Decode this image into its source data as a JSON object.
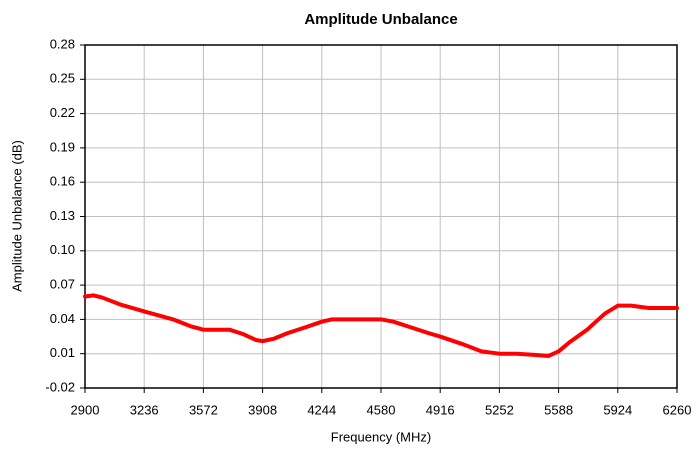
{
  "chart_data": {
    "type": "line",
    "title": "Amplitude Unbalance",
    "x_label": "Frequency (MHz)",
    "y_label": "Amplitude Unbalance (dB)",
    "series": [
      {
        "name": "Amplitude Unbalance",
        "color": "#ff0000",
        "x": [
          2900,
          2950,
          3000,
          3100,
          3236,
          3400,
          3500,
          3572,
          3650,
          3720,
          3800,
          3870,
          3908,
          3970,
          4050,
          4150,
          4244,
          4300,
          4400,
          4500,
          4580,
          4650,
          4750,
          4850,
          4916,
          5050,
          5150,
          5252,
          5350,
          5450,
          5530,
          5588,
          5650,
          5750,
          5850,
          5924,
          6000,
          6100,
          6260
        ],
        "values": [
          0.06,
          0.061,
          0.059,
          0.053,
          0.047,
          0.04,
          0.034,
          0.031,
          0.031,
          0.031,
          0.027,
          0.022,
          0.021,
          0.023,
          0.028,
          0.033,
          0.038,
          0.04,
          0.04,
          0.04,
          0.04,
          0.038,
          0.033,
          0.028,
          0.025,
          0.018,
          0.012,
          0.01,
          0.01,
          0.009,
          0.008,
          0.012,
          0.02,
          0.031,
          0.045,
          0.052,
          0.052,
          0.05,
          0.05
        ]
      }
    ],
    "xlim": [
      2900,
      6260
    ],
    "xticks": [
      2900,
      3236,
      3572,
      3908,
      4244,
      4580,
      4916,
      5252,
      5588,
      5924,
      6260
    ],
    "ylim": [
      -0.02,
      0.28
    ],
    "yticks": [
      -0.02,
      0.01,
      0.04,
      0.07,
      {
        "value": 0.1,
        "label": "0.10"
      },
      0.13,
      0.16,
      0.19,
      0.22,
      0.25,
      0.28
    ],
    "grid": true
  }
}
